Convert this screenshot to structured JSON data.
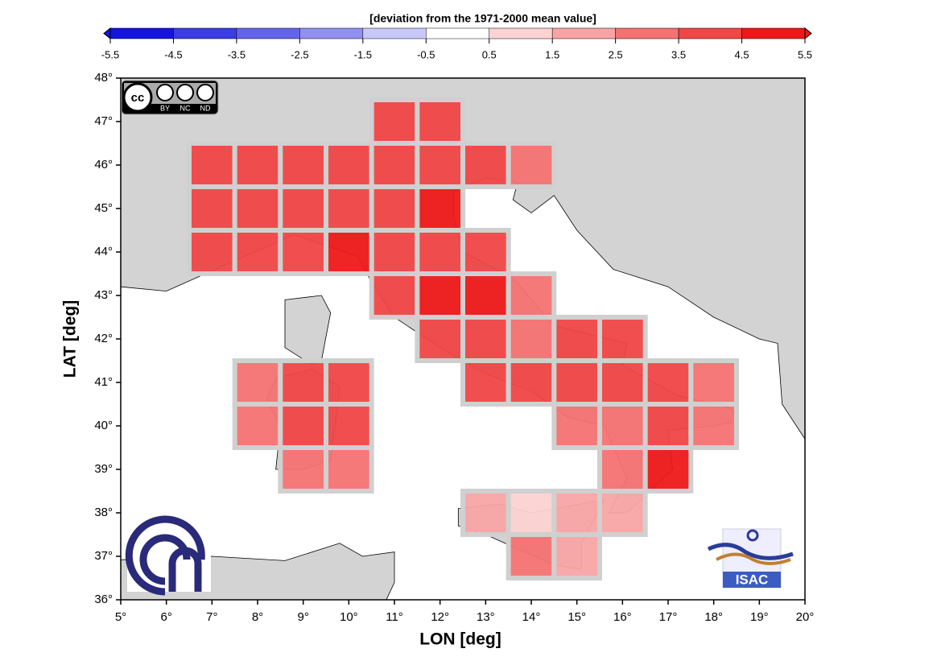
{
  "chart_data": {
    "type": "heatmap",
    "title": "[deviation from the 1971-2000 mean value]",
    "xlabel": "LON [deg]",
    "ylabel": "LAT [deg]",
    "xlim": [
      5,
      20
    ],
    "ylim": [
      36,
      48
    ],
    "xticks": [
      {
        "value": 5,
        "label": "5°"
      },
      {
        "value": 6,
        "label": "6°"
      },
      {
        "value": 7,
        "label": "7°"
      },
      {
        "value": 8,
        "label": "8°"
      },
      {
        "value": 9,
        "label": "9°"
      },
      {
        "value": 10,
        "label": "10°"
      },
      {
        "value": 11,
        "label": "11°"
      },
      {
        "value": 12,
        "label": "12°"
      },
      {
        "value": 13,
        "label": "13°"
      },
      {
        "value": 14,
        "label": "14°"
      },
      {
        "value": 15,
        "label": "15°"
      },
      {
        "value": 16,
        "label": "16°"
      },
      {
        "value": 17,
        "label": "17°"
      },
      {
        "value": 18,
        "label": "18°"
      },
      {
        "value": 19,
        "label": "19°"
      },
      {
        "value": 20,
        "label": "20°"
      }
    ],
    "yticks": [
      {
        "value": 36,
        "label": "36°"
      },
      {
        "value": 37,
        "label": "37°"
      },
      {
        "value": 38,
        "label": "38°"
      },
      {
        "value": 39,
        "label": "39°"
      },
      {
        "value": 40,
        "label": "40°"
      },
      {
        "value": 41,
        "label": "41°"
      },
      {
        "value": 42,
        "label": "42°"
      },
      {
        "value": 43,
        "label": "43°"
      },
      {
        "value": 44,
        "label": "44°"
      },
      {
        "value": 45,
        "label": "45°"
      },
      {
        "value": 46,
        "label": "46°"
      },
      {
        "value": 47,
        "label": "47°"
      },
      {
        "value": 48,
        "label": "48°"
      }
    ],
    "colorbar": {
      "ticks": [
        -5.5,
        -4.5,
        -3.5,
        -2.5,
        -1.5,
        -0.5,
        0.5,
        1.5,
        2.5,
        3.5,
        4.5,
        5.5
      ],
      "colors": [
        "#1414dc",
        "#3c3ce4",
        "#6464ea",
        "#9090f0",
        "#c8c8f8",
        "#ffffff",
        "#fcd2d2",
        "#f8a4a4",
        "#f47272",
        "#f04646",
        "#ee1818"
      ]
    },
    "cells": [
      {
        "lon": 11,
        "lat": 47,
        "value": 3.8
      },
      {
        "lon": 12,
        "lat": 47,
        "value": 3.8
      },
      {
        "lon": 7,
        "lat": 46,
        "value": 3.8
      },
      {
        "lon": 8,
        "lat": 46,
        "value": 3.8
      },
      {
        "lon": 9,
        "lat": 46,
        "value": 3.8
      },
      {
        "lon": 10,
        "lat": 46,
        "value": 3.8
      },
      {
        "lon": 11,
        "lat": 46,
        "value": 3.8
      },
      {
        "lon": 12,
        "lat": 46,
        "value": 3.8
      },
      {
        "lon": 13,
        "lat": 46,
        "value": 3.8
      },
      {
        "lon": 14,
        "lat": 46,
        "value": 2.6
      },
      {
        "lon": 7,
        "lat": 45,
        "value": 3.8
      },
      {
        "lon": 8,
        "lat": 45,
        "value": 3.8
      },
      {
        "lon": 9,
        "lat": 45,
        "value": 3.8
      },
      {
        "lon": 10,
        "lat": 45,
        "value": 3.8
      },
      {
        "lon": 11,
        "lat": 45,
        "value": 3.8
      },
      {
        "lon": 12,
        "lat": 45,
        "value": 5
      },
      {
        "lon": 7,
        "lat": 44,
        "value": 3.8
      },
      {
        "lon": 8,
        "lat": 44,
        "value": 3.8
      },
      {
        "lon": 9,
        "lat": 44,
        "value": 3.8
      },
      {
        "lon": 10,
        "lat": 44,
        "value": 4.6
      },
      {
        "lon": 11,
        "lat": 44,
        "value": 3.8
      },
      {
        "lon": 12,
        "lat": 44,
        "value": 3.8
      },
      {
        "lon": 13,
        "lat": 44,
        "value": 3.8
      },
      {
        "lon": 11,
        "lat": 43,
        "value": 3.8
      },
      {
        "lon": 12,
        "lat": 43,
        "value": 4.8
      },
      {
        "lon": 13,
        "lat": 43,
        "value": 4.7
      },
      {
        "lon": 14,
        "lat": 43,
        "value": 2.8
      },
      {
        "lon": 12,
        "lat": 42,
        "value": 3.8
      },
      {
        "lon": 13,
        "lat": 42,
        "value": 3.6
      },
      {
        "lon": 14,
        "lat": 42,
        "value": 2.8
      },
      {
        "lon": 15,
        "lat": 42,
        "value": 3.8
      },
      {
        "lon": 16,
        "lat": 42,
        "value": 3.6
      },
      {
        "lon": 8,
        "lat": 41,
        "value": 2.5
      },
      {
        "lon": 9,
        "lat": 41,
        "value": 3.8
      },
      {
        "lon": 10,
        "lat": 41,
        "value": 3.6
      },
      {
        "lon": 13,
        "lat": 41,
        "value": 3.6
      },
      {
        "lon": 14,
        "lat": 41,
        "value": 3.5
      },
      {
        "lon": 15,
        "lat": 41,
        "value": 3.6
      },
      {
        "lon": 16,
        "lat": 41,
        "value": 3.6
      },
      {
        "lon": 17,
        "lat": 41,
        "value": 3.8
      },
      {
        "lon": 18,
        "lat": 41,
        "value": 2.6
      },
      {
        "lon": 8,
        "lat": 40,
        "value": 2.6
      },
      {
        "lon": 9,
        "lat": 40,
        "value": 3.8
      },
      {
        "lon": 10,
        "lat": 40,
        "value": 3.6
      },
      {
        "lon": 15,
        "lat": 40,
        "value": 2.7
      },
      {
        "lon": 16,
        "lat": 40,
        "value": 2.6
      },
      {
        "lon": 17,
        "lat": 40,
        "value": 3.8
      },
      {
        "lon": 18,
        "lat": 40,
        "value": 2.6
      },
      {
        "lon": 9,
        "lat": 39,
        "value": 2.6
      },
      {
        "lon": 10,
        "lat": 39,
        "value": 2.6
      },
      {
        "lon": 16,
        "lat": 39,
        "value": 2.8
      },
      {
        "lon": 17,
        "lat": 39,
        "value": 4.6
      },
      {
        "lon": 13,
        "lat": 38,
        "value": 2
      },
      {
        "lon": 14,
        "lat": 38,
        "value": 1.2
      },
      {
        "lon": 15,
        "lat": 38,
        "value": 1.9
      },
      {
        "lon": 16,
        "lat": 38,
        "value": 2
      },
      {
        "lon": 14,
        "lat": 37,
        "value": 3
      },
      {
        "lon": 15,
        "lat": 37,
        "value": 2.2
      }
    ],
    "cc_badge": [
      "BY",
      "NC",
      "ND"
    ],
    "isac_logo": "ISAC"
  }
}
